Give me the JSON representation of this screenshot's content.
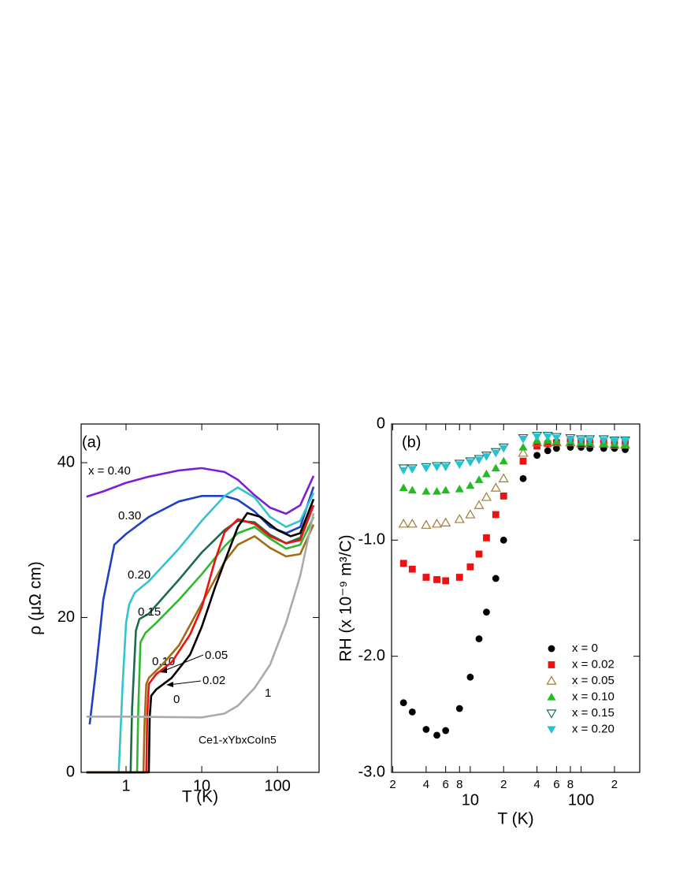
{
  "chart_data": [
    {
      "type": "line",
      "annotations": [
        "(a)",
        "Ce1-xYbxCoIn5"
      ],
      "x_label": "T (K)",
      "y_label": "ρ (μΩ cm)",
      "xscale": "log",
      "xlim": [
        0.255,
        355
      ],
      "ylim": [
        0,
        45
      ],
      "xticks": [
        1,
        10,
        100
      ],
      "yticks": [
        0,
        20,
        40
      ],
      "series": [
        {
          "name": "x = 0.40",
          "color": "#7b1fd6",
          "x": [
            0.3,
            0.5,
            1,
            2,
            5,
            10,
            20,
            30,
            50,
            80,
            130,
            200,
            300
          ],
          "values": [
            35.6,
            36.3,
            37.4,
            38.2,
            39,
            39.3,
            38.8,
            37.8,
            35.8,
            34.2,
            33.4,
            34.5,
            38.3
          ]
        },
        {
          "name": "0.30",
          "color": "#1f3fc4",
          "x": [
            0.33,
            0.4,
            0.5,
            0.7,
            1,
            2,
            5,
            10,
            20,
            30,
            50,
            80,
            130,
            200,
            300
          ],
          "values": [
            6.2,
            13.2,
            22.3,
            29.4,
            30.8,
            33,
            35,
            35.7,
            35.7,
            35.2,
            33.7,
            31.7,
            30.9,
            31.7,
            36.9
          ]
        },
        {
          "name": "0.20",
          "color": "#33c3cc",
          "x": [
            0.3,
            0.8,
            0.9,
            1,
            1.1,
            1.3,
            2,
            5,
            10,
            20,
            30,
            50,
            80,
            130,
            200,
            300
          ],
          "values": [
            0,
            0,
            11.2,
            19.3,
            21.7,
            23.2,
            24.7,
            28.9,
            32.5,
            35.7,
            36.8,
            35.5,
            33,
            31.7,
            32.5,
            36.1
          ]
        },
        {
          "name": "0.15",
          "color": "#1b6b4b",
          "x": [
            0.3,
            1.15,
            1.2,
            1.35,
            1.5,
            2,
            5,
            10,
            20,
            30,
            50,
            80,
            130,
            200,
            300
          ],
          "values": [
            0,
            0,
            8.1,
            18.3,
            19.8,
            20.5,
            24.9,
            28.4,
            31.3,
            32.5,
            32.3,
            30.7,
            29.6,
            30.3,
            34.5
          ]
        },
        {
          "name": "0.10",
          "color": "#2eb82e",
          "x": [
            0.3,
            1.4,
            1.45,
            1.55,
            1.8,
            2.5,
            5,
            10,
            20,
            30,
            50,
            80,
            130,
            200,
            300
          ],
          "values": [
            0,
            0,
            8.1,
            16.8,
            18,
            19.3,
            22.3,
            25.6,
            29.2,
            30.9,
            31.7,
            30.2,
            28.9,
            29.4,
            33
          ]
        },
        {
          "name": "0.05",
          "color": "#a06d12",
          "x": [
            0.3,
            1.7,
            1.75,
            1.85,
            2,
            3,
            5,
            10,
            20,
            30,
            50,
            80,
            130,
            200,
            300
          ],
          "values": [
            0,
            0,
            6.1,
            11.4,
            12.2,
            13.9,
            16.4,
            21.8,
            27.2,
            29.4,
            30.5,
            29,
            27.9,
            28.2,
            32
          ]
        },
        {
          "name": "0.02",
          "color": "#ee1111",
          "x": [
            0.3,
            1.85,
            1.9,
            2,
            2.5,
            4,
            7,
            10,
            15,
            20,
            30,
            50,
            80,
            130,
            200,
            300
          ],
          "values": [
            0,
            0,
            7.1,
            11.4,
            12.7,
            14.2,
            17.8,
            21.3,
            27.4,
            31,
            32.7,
            32.1,
            30.5,
            29.6,
            30,
            34.5
          ]
        },
        {
          "name": "0",
          "color": "#000000",
          "x": [
            0.3,
            2,
            2.05,
            2.15,
            2.5,
            4,
            7,
            10,
            15,
            20,
            30,
            40,
            60,
            100,
            150,
            200,
            300
          ],
          "values": [
            0,
            0,
            7.1,
            9.9,
            10.7,
            12.2,
            15.2,
            18.8,
            23.9,
            27.2,
            31.7,
            33.5,
            33,
            31.3,
            30.5,
            30.9,
            35.3
          ]
        },
        {
          "name": "1",
          "color": "#aaaaaa",
          "x": [
            0.3,
            1,
            10,
            20,
            30,
            50,
            80,
            130,
            200,
            300
          ],
          "values": [
            7.2,
            7.2,
            7.1,
            7.6,
            8.6,
            10.9,
            13.9,
            19.3,
            25.4,
            33.5
          ]
        }
      ]
    },
    {
      "type": "scatter",
      "annotations": [
        "(b)"
      ],
      "x_label": "T (K)",
      "y_label": "RH (x 10⁻⁹ m³/C)",
      "xscale": "log",
      "xlim": [
        1.95,
        338
      ],
      "ylim": [
        -3,
        0
      ],
      "xticks": [
        {
          "value": 2,
          "label": "2"
        },
        {
          "value": 4,
          "label": "4"
        },
        {
          "value": 6,
          "label": "6"
        },
        {
          "value": 8,
          "label": "8"
        },
        10,
        {
          "value": 20,
          "label": "2"
        },
        {
          "value": 40,
          "label": "4"
        },
        {
          "value": 60,
          "label": "6"
        },
        {
          "value": 80,
          "label": "8"
        },
        100,
        {
          "value": 200,
          "label": "2"
        }
      ],
      "yticks": [
        {
          "value": -3,
          "label": "-3.0"
        },
        {
          "value": -2,
          "label": "-2.0"
        },
        {
          "value": -1,
          "label": "-1.0"
        },
        0
      ],
      "legend": "lower right",
      "x": [
        2.5,
        3,
        4,
        5,
        6,
        8,
        10,
        12,
        14,
        17,
        20,
        30,
        40,
        50,
        60,
        80,
        100,
        120,
        160,
        200,
        250
      ],
      "series": [
        {
          "name": "x = 0",
          "color": "#000000",
          "marker": "circle",
          "filled": true,
          "values": [
            -2.4,
            -2.48,
            -2.63,
            -2.68,
            -2.64,
            -2.45,
            -2.18,
            -1.85,
            -1.62,
            -1.33,
            -1.0,
            -0.47,
            -0.27,
            -0.23,
            -0.21,
            -0.2,
            -0.2,
            -0.21,
            -0.21,
            -0.21,
            -0.22
          ]
        },
        {
          "name": "x = 0.02",
          "color": "#ee1111",
          "marker": "square",
          "filled": true,
          "values": [
            -1.2,
            -1.25,
            -1.32,
            -1.34,
            -1.35,
            -1.32,
            -1.23,
            -1.12,
            -0.98,
            -0.78,
            -0.62,
            -0.32,
            -0.19,
            -0.17,
            -0.16,
            -0.15,
            -0.15,
            -0.16,
            -0.15,
            -0.15,
            -0.15
          ]
        },
        {
          "name": "x = 0.05",
          "color": "#a07a3a",
          "marker": "triangle-up",
          "filled": false,
          "values": [
            -0.86,
            -0.86,
            -0.87,
            -0.86,
            -0.85,
            -0.82,
            -0.78,
            -0.7,
            -0.63,
            -0.55,
            -0.47,
            -0.25,
            -0.16,
            -0.16,
            -0.16,
            -0.16,
            -0.17,
            -0.17,
            -0.17,
            -0.18,
            -0.18
          ]
        },
        {
          "name": "x = 0.10",
          "color": "#22bb22",
          "marker": "triangle-up",
          "filled": true,
          "values": [
            -0.55,
            -0.57,
            -0.58,
            -0.58,
            -0.57,
            -0.56,
            -0.53,
            -0.48,
            -0.43,
            -0.38,
            -0.32,
            -0.2,
            -0.14,
            -0.14,
            -0.15,
            -0.15,
            -0.16,
            -0.16,
            -0.17,
            -0.17,
            -0.18
          ]
        },
        {
          "name": "x = 0.15",
          "color": "#1b6b5b",
          "marker": "triangle-down",
          "filled": false,
          "values": [
            -0.38,
            -0.38,
            -0.37,
            -0.36,
            -0.36,
            -0.34,
            -0.32,
            -0.3,
            -0.27,
            -0.24,
            -0.2,
            -0.12,
            -0.1,
            -0.1,
            -0.11,
            -0.12,
            -0.13,
            -0.13,
            -0.13,
            -0.14,
            -0.14
          ]
        },
        {
          "name": "x = 0.20",
          "color": "#22c4d4",
          "marker": "triangle-down",
          "filled": true,
          "values": [
            -0.4,
            -0.39,
            -0.38,
            -0.37,
            -0.37,
            -0.35,
            -0.33,
            -0.31,
            -0.28,
            -0.25,
            -0.21,
            -0.13,
            -0.11,
            -0.11,
            -0.12,
            -0.13,
            -0.14,
            -0.14,
            -0.14,
            -0.15,
            -0.15
          ]
        }
      ]
    }
  ]
}
